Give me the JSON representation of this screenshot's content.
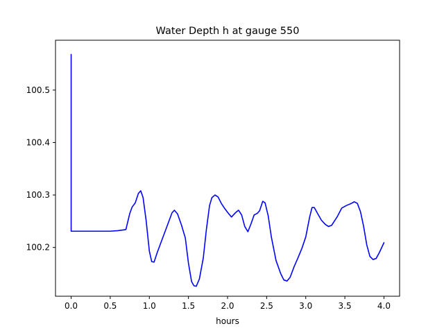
{
  "chart_data": {
    "type": "line",
    "title": "Water Depth h at gauge 550",
    "xlabel": "hours",
    "ylabel": "",
    "xlim": [
      -0.2,
      4.2
    ],
    "ylim": [
      100.107,
      100.595
    ],
    "xticks": [
      0.0,
      0.5,
      1.0,
      1.5,
      2.0,
      2.5,
      3.0,
      3.5,
      4.0
    ],
    "xtick_labels": [
      "0.0",
      "0.5",
      "1.0",
      "1.5",
      "2.0",
      "2.5",
      "3.0",
      "3.5",
      "4.0"
    ],
    "yticks": [
      100.2,
      100.3,
      100.4,
      100.5
    ],
    "ytick_labels": [
      "100.2",
      "100.3",
      "100.4",
      "100.5"
    ],
    "grid": false,
    "series": [
      {
        "color": "#0000ff",
        "points": [
          [
            0.0,
            100.568
          ],
          [
            0.0,
            100.231
          ],
          [
            0.1,
            100.231
          ],
          [
            0.3,
            100.231
          ],
          [
            0.5,
            100.231
          ],
          [
            0.6,
            100.232
          ],
          [
            0.7,
            100.234
          ],
          [
            0.75,
            100.265
          ],
          [
            0.78,
            100.277
          ],
          [
            0.82,
            100.285
          ],
          [
            0.86,
            100.303
          ],
          [
            0.89,
            100.308
          ],
          [
            0.92,
            100.295
          ],
          [
            0.96,
            100.25
          ],
          [
            1.0,
            100.193
          ],
          [
            1.03,
            100.173
          ],
          [
            1.06,
            100.172
          ],
          [
            1.1,
            100.19
          ],
          [
            1.15,
            100.21
          ],
          [
            1.2,
            100.23
          ],
          [
            1.25,
            100.25
          ],
          [
            1.29,
            100.266
          ],
          [
            1.32,
            100.271
          ],
          [
            1.36,
            100.264
          ],
          [
            1.41,
            100.243
          ],
          [
            1.46,
            100.218
          ],
          [
            1.5,
            100.17
          ],
          [
            1.54,
            100.135
          ],
          [
            1.57,
            100.127
          ],
          [
            1.6,
            100.126
          ],
          [
            1.64,
            100.14
          ],
          [
            1.69,
            100.18
          ],
          [
            1.73,
            100.235
          ],
          [
            1.77,
            100.28
          ],
          [
            1.8,
            100.295
          ],
          [
            1.84,
            100.3
          ],
          [
            1.88,
            100.296
          ],
          [
            1.92,
            100.284
          ],
          [
            1.96,
            100.275
          ],
          [
            2.0,
            100.267
          ],
          [
            2.05,
            100.258
          ],
          [
            2.1,
            100.266
          ],
          [
            2.14,
            100.271
          ],
          [
            2.18,
            100.262
          ],
          [
            2.22,
            100.24
          ],
          [
            2.26,
            100.23
          ],
          [
            2.3,
            100.245
          ],
          [
            2.34,
            100.262
          ],
          [
            2.38,
            100.265
          ],
          [
            2.41,
            100.27
          ],
          [
            2.45,
            100.288
          ],
          [
            2.48,
            100.285
          ],
          [
            2.52,
            100.26
          ],
          [
            2.56,
            100.22
          ],
          [
            2.62,
            100.175
          ],
          [
            2.68,
            100.15
          ],
          [
            2.72,
            100.138
          ],
          [
            2.76,
            100.136
          ],
          [
            2.8,
            100.143
          ],
          [
            2.85,
            100.163
          ],
          [
            2.9,
            100.18
          ],
          [
            2.95,
            100.198
          ],
          [
            3.0,
            100.22
          ],
          [
            3.05,
            100.258
          ],
          [
            3.08,
            100.276
          ],
          [
            3.11,
            100.276
          ],
          [
            3.15,
            100.265
          ],
          [
            3.2,
            100.252
          ],
          [
            3.25,
            100.244
          ],
          [
            3.29,
            100.24
          ],
          [
            3.33,
            100.242
          ],
          [
            3.4,
            100.258
          ],
          [
            3.46,
            100.275
          ],
          [
            3.52,
            100.28
          ],
          [
            3.57,
            100.283
          ],
          [
            3.62,
            100.287
          ],
          [
            3.66,
            100.284
          ],
          [
            3.7,
            100.268
          ],
          [
            3.74,
            100.24
          ],
          [
            3.78,
            100.205
          ],
          [
            3.82,
            100.183
          ],
          [
            3.86,
            100.177
          ],
          [
            3.9,
            100.179
          ],
          [
            3.94,
            100.19
          ],
          [
            4.0,
            100.209
          ]
        ]
      }
    ]
  }
}
